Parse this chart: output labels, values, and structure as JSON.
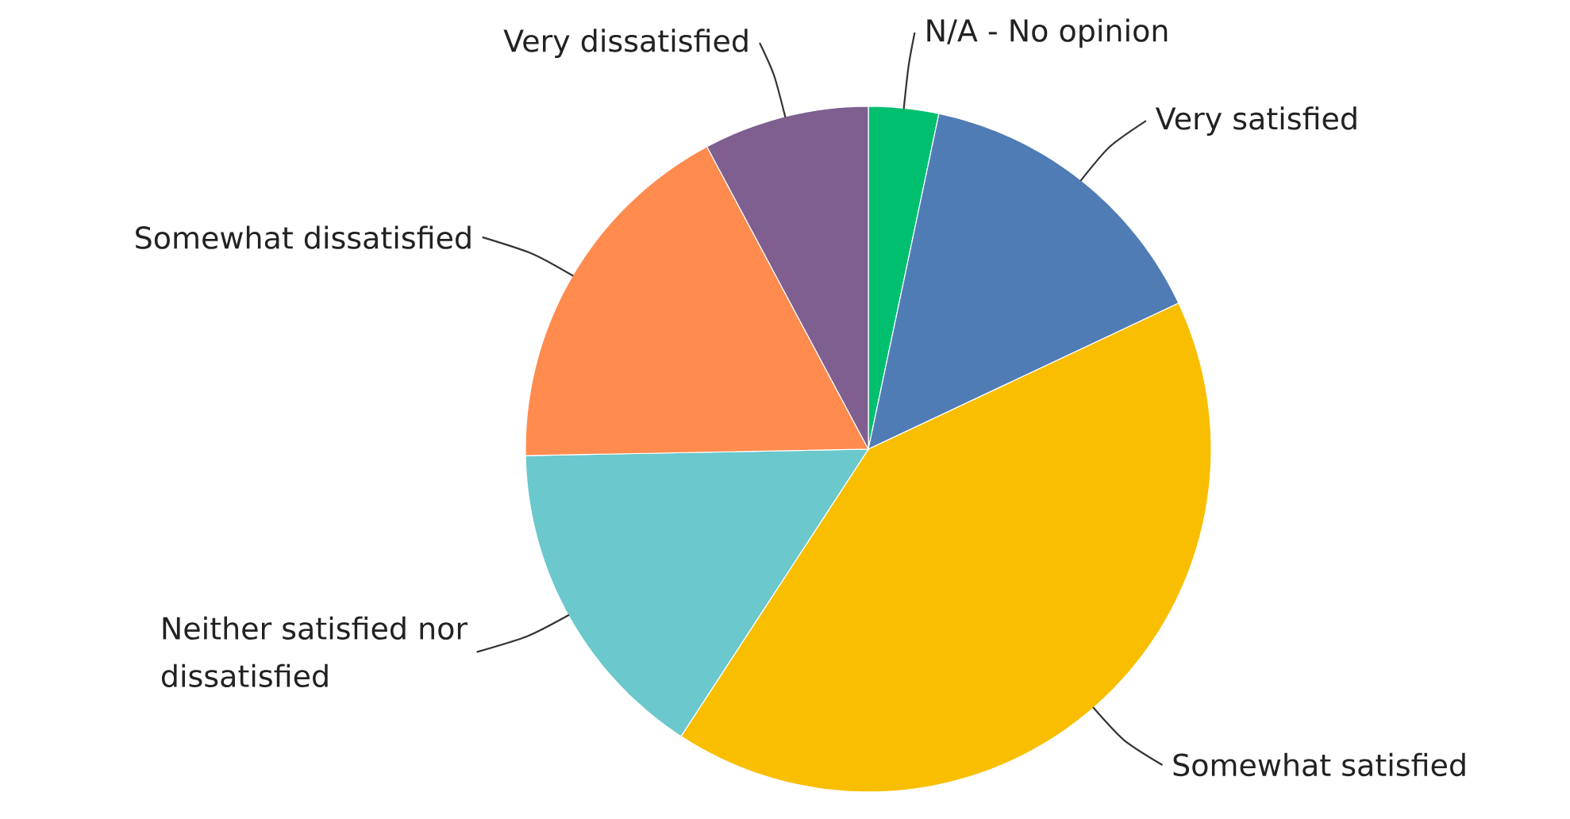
{
  "chart_data": {
    "type": "pie",
    "categories": [
      "N/A - No opinion",
      "Very satisfied",
      "Somewhat satisfied",
      "Neither satisfied nor dissatisfied",
      "Somewhat dissatisfied",
      "Very dissatisfied"
    ],
    "values": [
      3.3,
      14.7,
      41.2,
      15.5,
      17.5,
      7.8
    ],
    "colors": [
      "#00bf6f",
      "#507cb6",
      "#f9be00",
      "#6bc8cd",
      "#ff8b4f",
      "#7f5f90"
    ]
  }
}
